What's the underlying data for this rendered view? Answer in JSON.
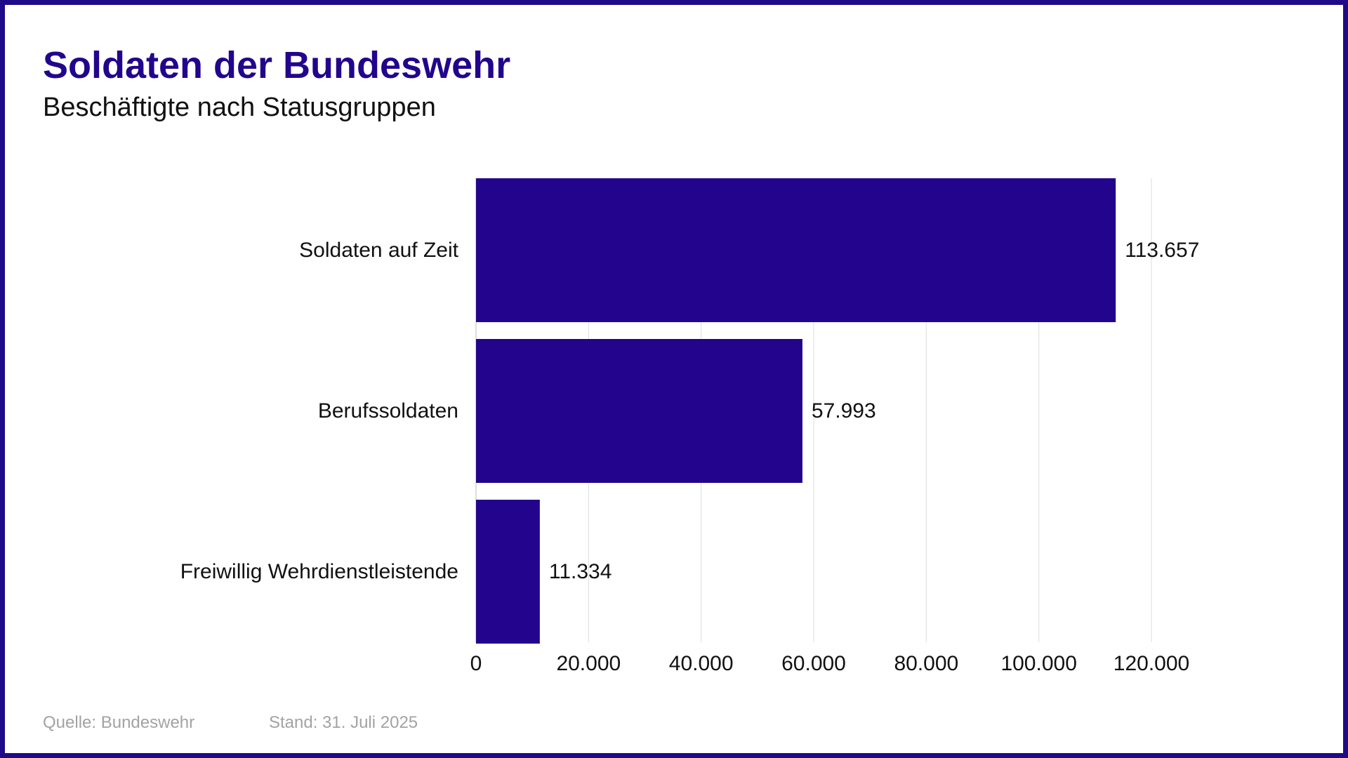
{
  "header": {
    "title": "Soldaten der Bundeswehr",
    "subtitle": "Beschäftigte nach Statusgruppen"
  },
  "footer": {
    "source": "Quelle: Bundeswehr",
    "date": "Stand: 31. Juli 2025"
  },
  "colors": {
    "bar": "#22058c",
    "frame": "#1f0a8a",
    "grid": "#dddddd"
  },
  "chart_data": {
    "type": "bar",
    "orientation": "horizontal",
    "categories": [
      "Soldaten auf Zeit",
      "Berufssoldaten",
      "Freiwillig Wehrdienstleistende"
    ],
    "values": [
      113657,
      57993,
      11334
    ],
    "value_labels": [
      "113.657",
      "57.993",
      "11.334"
    ],
    "xticks": [
      0,
      20000,
      40000,
      60000,
      80000,
      100000,
      120000
    ],
    "xtick_labels": [
      "0",
      "20.000",
      "40.000",
      "60.000",
      "80.000",
      "100.000",
      "120.000"
    ],
    "xlim": [
      0,
      120000
    ],
    "grid": true,
    "legend": "none"
  }
}
